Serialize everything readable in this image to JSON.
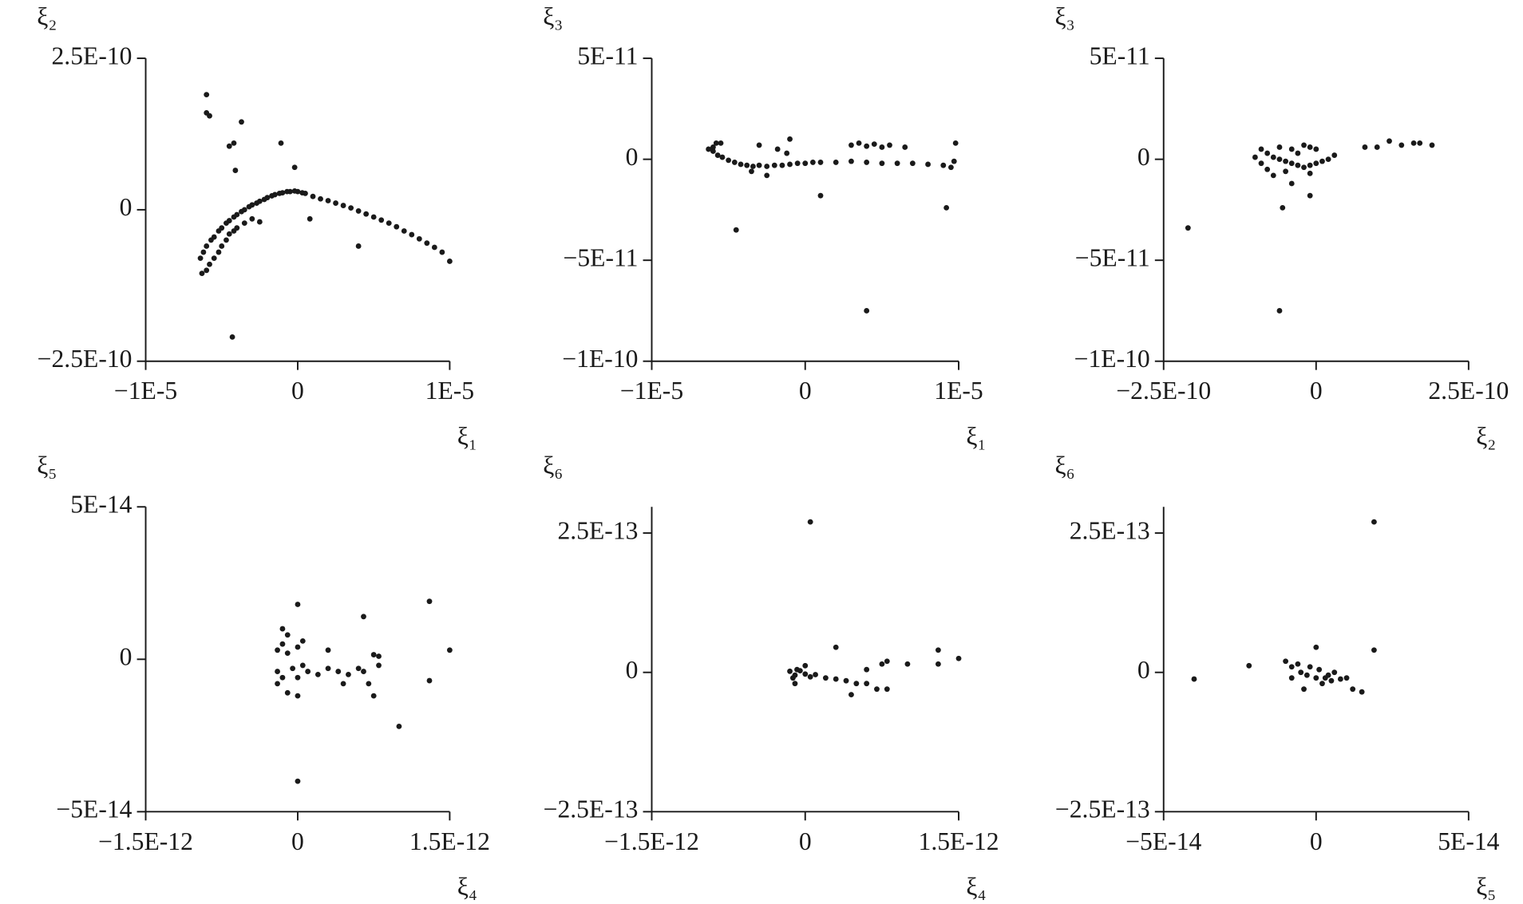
{
  "chart_data": [
    {
      "type": "scatter",
      "x_label": "ξ₁",
      "y_label": "ξ₂",
      "color": "#1a1a1a",
      "xlim": [
        -1e-05,
        1e-05
      ],
      "xticks": [
        {
          "value": -1e-05,
          "label": "−1E-5"
        },
        0,
        {
          "value": 1e-05,
          "label": "1E-5"
        }
      ],
      "ylim": [
        -2.5e-10,
        2.5e-10
      ],
      "yticks": [
        {
          "value": -2.5e-10,
          "label": "−2.5E-10"
        },
        0,
        {
          "value": 2.5e-10,
          "label": "2.5E-10"
        }
      ],
      "x": [
        -6.4e-06,
        -6.2e-06,
        -6e-06,
        -5.7e-06,
        -5.5e-06,
        -5.2e-06,
        -5e-06,
        -4.7e-06,
        -4.5e-06,
        -4.2e-06,
        -4e-06,
        -3.7e-06,
        -3.5e-06,
        -3.2e-06,
        -3e-06,
        -2.7e-06,
        -2.5e-06,
        -2.2e-06,
        -2e-06,
        -1.7e-06,
        -1.5e-06,
        -1.2e-06,
        -1e-06,
        -7e-07,
        -5e-07,
        -2e-07,
        0,
        3e-07,
        5e-07,
        1e-06,
        1.5e-06,
        2e-06,
        2.5e-06,
        3e-06,
        3.5e-06,
        4e-06,
        4.5e-06,
        5e-06,
        5.5e-06,
        6e-06,
        6.5e-06,
        7e-06,
        7.5e-06,
        8e-06,
        8.5e-06,
        9e-06,
        9.5e-06,
        1e-05,
        -6.3e-06,
        -6e-06,
        -5.8e-06,
        -5.5e-06,
        -5.2e-06,
        -5e-06,
        -4.7e-06,
        -4.5e-06,
        -4.2e-06,
        -4e-06,
        -3.5e-06,
        -3e-06,
        -6e-06,
        -6e-06,
        -5.8e-06,
        -3.7e-06,
        -4.2e-06,
        -4.5e-06,
        -1.1e-06,
        -4.1e-06,
        -2e-07,
        -4.3e-06,
        4e-06,
        8e-07,
        -2.5e-06
      ],
      "values": [
        -8e-11,
        -7e-11,
        -6e-11,
        -5e-11,
        -4.5e-11,
        -3.5e-11,
        -3e-11,
        -2.2e-11,
        -1.8e-11,
        -1.2e-11,
        -8e-12,
        -3e-12,
        0,
        5e-12,
        8e-12,
        1.1e-11,
        1.4e-11,
        1.7e-11,
        2e-11,
        2.3e-11,
        2.5e-11,
        2.7e-11,
        2.8e-11,
        3e-11,
        3e-11,
        3.1e-11,
        3e-11,
        2.8e-11,
        2.7e-11,
        2.2e-11,
        1.8e-11,
        1.5e-11,
        1.1e-11,
        7e-12,
        3e-12,
        -2e-12,
        -7e-12,
        -1.2e-11,
        -1.7e-11,
        -2.2e-11,
        -2.8e-11,
        -3.5e-11,
        -4.1e-11,
        -4.8e-11,
        -5.5e-11,
        -6.2e-11,
        -7e-11,
        -8.5e-11,
        -1.05e-10,
        -1e-10,
        -9e-11,
        -8e-11,
        -7e-11,
        -6e-11,
        -5e-11,
        -4e-11,
        -3.5e-11,
        -3e-11,
        -2.2e-11,
        -1.5e-11,
        1.9e-10,
        1.6e-10,
        1.55e-10,
        1.45e-10,
        1.1e-10,
        1.05e-10,
        1.1e-10,
        6.5e-11,
        7e-11,
        -2.1e-10,
        -6e-11,
        -1.5e-11,
        -2e-11
      ]
    },
    {
      "type": "scatter",
      "x_label": "ξ₁",
      "y_label": "ξ₃",
      "color": "#1a1a1a",
      "xlim": [
        -1e-05,
        1e-05
      ],
      "xticks": [
        {
          "value": -1e-05,
          "label": "−1E-5"
        },
        0,
        {
          "value": 1e-05,
          "label": "1E-5"
        }
      ],
      "ylim": [
        -1e-10,
        5e-11
      ],
      "yticks": [
        {
          "value": -1e-10,
          "label": "−1E-10"
        },
        {
          "value": -5e-11,
          "label": "−5E-11"
        },
        0,
        {
          "value": 5e-11,
          "label": "5E-11"
        }
      ],
      "x": [
        -6.3e-06,
        -6e-06,
        -5.7e-06,
        -5.4e-06,
        -5e-06,
        -4.6e-06,
        -4.2e-06,
        -3.8e-06,
        -3.4e-06,
        -3e-06,
        -2.5e-06,
        -2e-06,
        -1.5e-06,
        -1e-06,
        -5e-07,
        0,
        5e-07,
        1e-06,
        2e-06,
        3e-06,
        4e-06,
        5e-06,
        6e-06,
        7e-06,
        8e-06,
        9e-06,
        9.5e-06,
        -5.5e-06,
        -6e-06,
        -3.5e-06,
        -2.5e-06,
        -1.8e-06,
        -1.2e-06,
        3e-06,
        3.5e-06,
        4e-06,
        4.5e-06,
        5e-06,
        5.5e-06,
        6.5e-06,
        -4.5e-06,
        4e-06,
        1e-06,
        9.2e-06,
        9.8e-06,
        -1e-06,
        -5.8e-06,
        -3e-06,
        9.7e-06
      ],
      "values": [
        5e-12,
        4e-12,
        2e-12,
        1e-12,
        -5e-13,
        -1.5e-12,
        -2.5e-12,
        -3e-12,
        -3.5e-12,
        -3e-12,
        -3.5e-12,
        -3e-12,
        -3e-12,
        -2.5e-12,
        -2e-12,
        -2e-12,
        -1.5e-12,
        -1.5e-12,
        -1.5e-12,
        -1e-12,
        -1.5e-12,
        -2e-12,
        -2e-12,
        -2e-12,
        -2.5e-12,
        -3e-12,
        -4e-12,
        8e-12,
        6e-12,
        -6e-12,
        -8e-12,
        5e-12,
        3e-12,
        7e-12,
        8e-12,
        6.5e-12,
        7.5e-12,
        6e-12,
        7e-12,
        6e-12,
        -3.5e-11,
        -7.5e-11,
        -1.8e-11,
        -2.4e-11,
        8e-12,
        1e-11,
        8e-12,
        7e-12,
        -1e-12
      ]
    },
    {
      "type": "scatter",
      "x_label": "ξ₂",
      "y_label": "ξ₃",
      "color": "#1a1a1a",
      "xlim": [
        -2.5e-10,
        2.5e-10
      ],
      "xticks": [
        {
          "value": -2.5e-10,
          "label": "−2.5E-10"
        },
        0,
        {
          "value": 2.5e-10,
          "label": "2.5E-10"
        }
      ],
      "ylim": [
        -1e-10,
        5e-11
      ],
      "yticks": [
        {
          "value": -1e-10,
          "label": "−1E-10"
        },
        {
          "value": -5e-11,
          "label": "−5E-11"
        },
        0,
        {
          "value": 5e-11,
          "label": "5E-11"
        }
      ],
      "x": [
        -9e-11,
        -8e-11,
        -7e-11,
        -6e-11,
        -5e-11,
        -4e-11,
        -3e-11,
        -2e-11,
        -1e-11,
        0,
        1e-11,
        2e-11,
        3e-11,
        -9e-11,
        -8e-11,
        -6e-11,
        -4e-11,
        -2e-11,
        -1e-11,
        0,
        -7e-11,
        -5e-11,
        -3e-11,
        -1e-11,
        -1e-10,
        8e-11,
        1.2e-10,
        1.4e-10,
        1.6e-10,
        1.7e-10,
        1.9e-10,
        1e-10,
        -2.1e-10,
        -6e-11,
        -5.5e-11,
        -1e-11,
        -4e-11
      ],
      "values": [
        5e-12,
        3e-12,
        1e-12,
        0,
        -1e-12,
        -2e-12,
        -3e-12,
        -4e-12,
        -3e-12,
        -2e-12,
        -1e-12,
        0,
        2e-12,
        -2e-12,
        -5e-12,
        6e-12,
        5e-12,
        7e-12,
        6e-12,
        5e-12,
        -8e-12,
        -6e-12,
        3e-12,
        -7e-12,
        1e-12,
        6e-12,
        9e-12,
        7e-12,
        8e-12,
        8e-12,
        7e-12,
        6e-12,
        -3.4e-11,
        -7.5e-11,
        -2.4e-11,
        -1.8e-11,
        -1.2e-11
      ]
    },
    {
      "type": "scatter",
      "x_label": "ξ₄",
      "y_label": "ξ₅",
      "color": "#1a1a1a",
      "xlim": [
        -1.5e-12,
        1.5e-12
      ],
      "xticks": [
        {
          "value": -1.5e-12,
          "label": "−1.5E-12"
        },
        0,
        {
          "value": 1.5e-12,
          "label": "1.5E-12"
        }
      ],
      "ylim": [
        -5e-14,
        5e-14
      ],
      "yticks": [
        {
          "value": -5e-14,
          "label": "−5E-14"
        },
        0,
        {
          "value": 5e-14,
          "label": "5E-14"
        }
      ],
      "x": [
        -2e-13,
        -1.5e-13,
        -1e-13,
        -5e-14,
        0,
        5e-14,
        -2e-13,
        -1.5e-13,
        -1e-13,
        0,
        5e-14,
        -2e-13,
        -1e-13,
        0,
        -1.5e-13,
        1e-13,
        2e-13,
        3e-13,
        3e-13,
        4e-13,
        5e-13,
        6e-13,
        7e-13,
        7.5e-13,
        8e-13,
        8e-13,
        4.5e-13,
        6.5e-13,
        0,
        1e-12,
        1.3e-12,
        1.5e-12,
        6.5e-13,
        0,
        1.3e-12,
        7.5e-13
      ],
      "values": [
        3e-15,
        5e-15,
        2e-15,
        -3e-15,
        4e-15,
        -2e-15,
        -4e-15,
        -6e-15,
        8e-15,
        -6e-15,
        6e-15,
        -8e-15,
        -1.1e-14,
        -1.2e-14,
        1e-14,
        -4e-15,
        -5e-15,
        -3e-15,
        3e-15,
        -4e-15,
        -5e-15,
        -3e-15,
        -8e-15,
        -1.2e-14,
        1e-15,
        -2e-15,
        -8e-15,
        -4e-15,
        -4e-14,
        -2.2e-14,
        1.9e-14,
        3e-15,
        1.4e-14,
        1.8e-14,
        -7e-15,
        1.5e-15
      ]
    },
    {
      "type": "scatter",
      "x_label": "ξ₄",
      "y_label": "ξ₆",
      "color": "#1a1a1a",
      "xlim": [
        -1.5e-12,
        1.5e-12
      ],
      "xticks": [
        {
          "value": -1.5e-12,
          "label": "−1.5E-12"
        },
        0,
        {
          "value": 1.5e-12,
          "label": "1.5E-12"
        }
      ],
      "ylim": [
        -2.5e-13,
        2.97e-13
      ],
      "yticks": [
        {
          "value": -2.5e-13,
          "label": "−2.5E-13"
        },
        0,
        {
          "value": 2.5e-13,
          "label": "2.5E-13"
        }
      ],
      "x": [
        -1.5e-13,
        -1e-13,
        -5e-14,
        0,
        -1.2e-13,
        -8e-14,
        5e-14,
        1e-13,
        2e-13,
        3e-13,
        4e-13,
        5e-13,
        6e-13,
        7e-13,
        8e-13,
        7.5e-13,
        8e-13,
        4.5e-13,
        6e-13,
        -1e-13,
        0,
        5e-14,
        3e-13,
        1.3e-12,
        1.5e-12,
        1.3e-12,
        1e-12
      ],
      "values": [
        2e-15,
        -5e-15,
        3e-15,
        -3e-15,
        -1e-14,
        5e-15,
        -8e-15,
        -4e-15,
        -1e-14,
        -1.2e-14,
        -1.5e-14,
        -2e-14,
        -2e-14,
        -3e-14,
        -3e-14,
        1.5e-14,
        2e-14,
        -4e-14,
        5e-15,
        -2e-14,
        1.2e-14,
        2.7e-13,
        4.5e-14,
        4e-14,
        2.5e-14,
        1.5e-14,
        1.5e-14
      ]
    },
    {
      "type": "scatter",
      "x_label": "ξ₅",
      "y_label": "ξ₆",
      "color": "#1a1a1a",
      "xlim": [
        -5e-14,
        5e-14
      ],
      "xticks": [
        {
          "value": -5e-14,
          "label": "−5E-14"
        },
        0,
        {
          "value": 5e-14,
          "label": "5E-14"
        }
      ],
      "ylim": [
        -2.5e-13,
        2.97e-13
      ],
      "yticks": [
        {
          "value": -2.5e-13,
          "label": "−2.5E-13"
        },
        0,
        {
          "value": 2.5e-13,
          "label": "2.5E-13"
        }
      ],
      "x": [
        -1e-14,
        -8e-15,
        -5e-15,
        -3e-15,
        0,
        3e-15,
        5e-15,
        8e-15,
        -6e-15,
        -2e-15,
        1e-15,
        4e-15,
        -8e-15,
        -4e-15,
        2e-15,
        6e-15,
        1e-14,
        0,
        1.9e-14,
        1.9e-14,
        -2.2e-14,
        -4e-14,
        1.5e-14,
        1.2e-14
      ],
      "values": [
        2e-14,
        1e-14,
        0,
        -5e-15,
        -1e-14,
        -1e-14,
        -1.5e-14,
        -1.2e-14,
        1.5e-14,
        1e-14,
        5e-15,
        -5e-15,
        -1e-14,
        -3e-14,
        -2e-14,
        0,
        -1e-14,
        4.5e-14,
        2.7e-13,
        4e-14,
        1.2e-14,
        -1.2e-14,
        -3.5e-14,
        -3e-14
      ]
    }
  ]
}
